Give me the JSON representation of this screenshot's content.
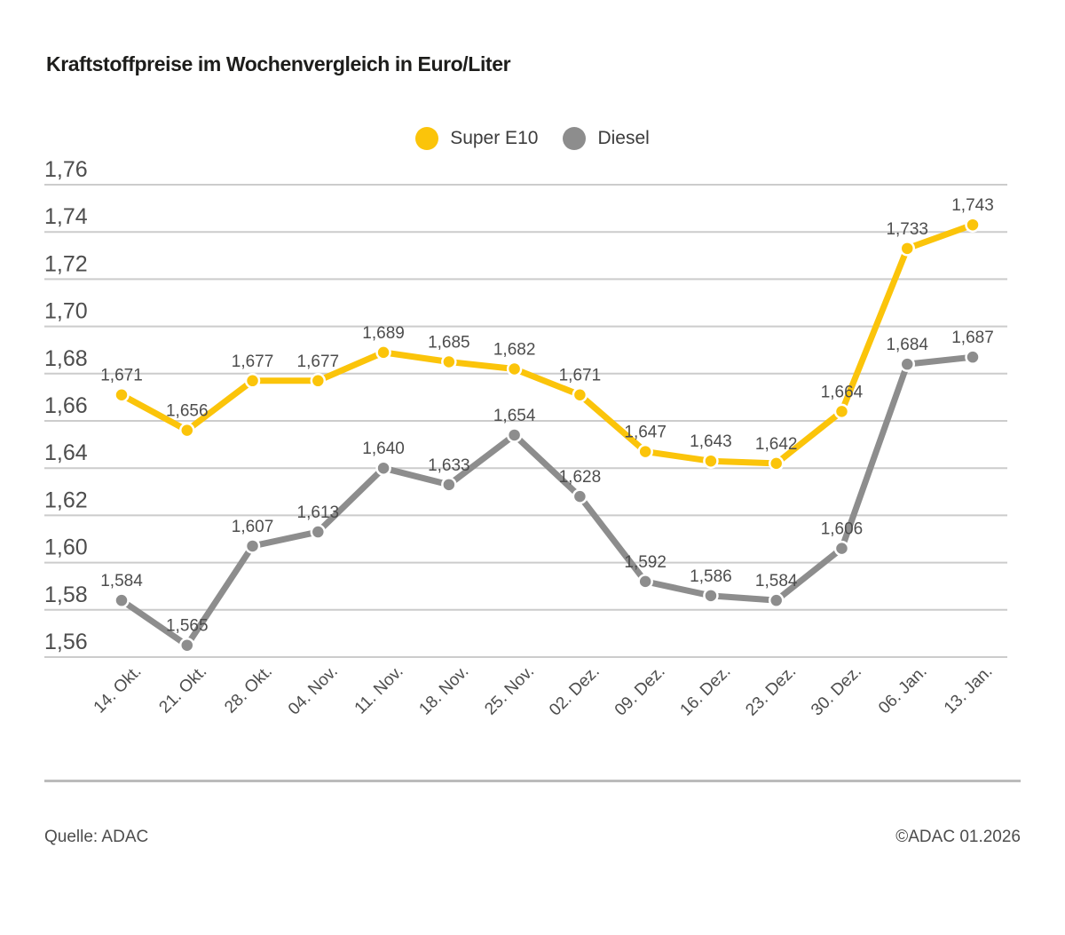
{
  "title": "Kraftstoffpreise im Wochenvergleich in Euro/Liter",
  "legend": {
    "items": [
      {
        "label": "Super E10",
        "color": "#fbc40a"
      },
      {
        "label": "Diesel",
        "color": "#8d8d8d"
      }
    ]
  },
  "footer": {
    "source": "Quelle: ADAC",
    "copyright": "©ADAC 01.2026"
  },
  "colors": {
    "super_e10": "#fbc40a",
    "diesel": "#8d8d8d",
    "gridline": "#cccccc",
    "axis_text": "#4d4d4d",
    "value_label_text": "#4d4d4d"
  },
  "chart_data": {
    "type": "line",
    "title": "Kraftstoffpreise im Wochenvergleich in Euro/Liter",
    "xlabel": "",
    "ylabel": "Euro/Liter",
    "grid": true,
    "legend_position": "top-center",
    "ylim": [
      1.56,
      1.76
    ],
    "ytick_step": 0.02,
    "ytick_labels": [
      "1,76",
      "1,74",
      "1,72",
      "1,70",
      "1,68",
      "1,66",
      "1,64",
      "1,62",
      "1,60",
      "1,58",
      "1,56"
    ],
    "decimal_separator": ",",
    "categories": [
      "14. Okt.",
      "21. Okt.",
      "28. Okt.",
      "04. Nov.",
      "11. Nov.",
      "18. Nov.",
      "25. Nov.",
      "02. Dez.",
      "09. Dez.",
      "16. Dez.",
      "23. Dez.",
      "30. Dez.",
      "06. Jan.",
      "13. Jan."
    ],
    "series": [
      {
        "name": "Super E10",
        "color": "#fbc40a",
        "values": [
          1.671,
          1.656,
          1.677,
          1.677,
          1.689,
          1.685,
          1.682,
          1.671,
          1.647,
          1.643,
          1.642,
          1.664,
          1.733,
          1.743
        ],
        "value_labels": [
          "1,671",
          "1,656",
          "1,677",
          "1,677",
          "1,689",
          "1,685",
          "1,682",
          "1,671",
          "1,647",
          "1,643",
          "1,642",
          "1,664",
          "1,733",
          "1,743"
        ]
      },
      {
        "name": "Diesel",
        "color": "#8d8d8d",
        "values": [
          1.584,
          1.565,
          1.607,
          1.613,
          1.64,
          1.633,
          1.654,
          1.628,
          1.592,
          1.586,
          1.584,
          1.606,
          1.684,
          1.687
        ],
        "value_labels": [
          "1,584",
          "1,565",
          "1,607",
          "1,613",
          "1,640",
          "1,633",
          "1,654",
          "1,628",
          "1,592",
          "1,586",
          "1,584",
          "1,606",
          "1,684",
          "1,687"
        ]
      }
    ]
  }
}
